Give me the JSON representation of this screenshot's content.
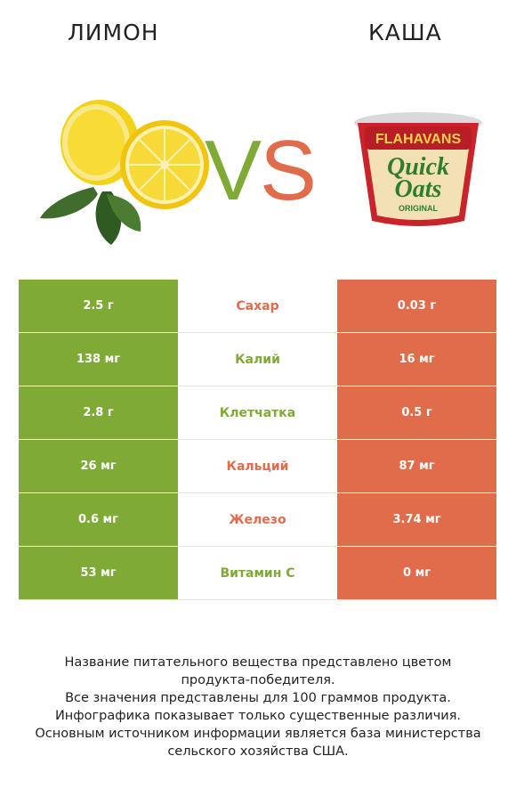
{
  "header": {
    "left_title": "ЛИМОН",
    "right_title": "КАША",
    "vs_v": "V",
    "vs_s": "S"
  },
  "product_right": {
    "brand": "FLAHAVANS",
    "line1": "Quick",
    "line2": "Oats",
    "variant": "ORIGINAL"
  },
  "colors": {
    "winner_left": "#7faa35",
    "winner_right": "#e06c4b"
  },
  "rows": [
    {
      "left": "2.5 г",
      "label": "Сахар",
      "right": "0.03 г",
      "winner": "right"
    },
    {
      "left": "138 мг",
      "label": "Калий",
      "right": "16 мг",
      "winner": "left"
    },
    {
      "left": "2.8 г",
      "label": "Клетчатка",
      "right": "0.5 г",
      "winner": "left"
    },
    {
      "left": "26 мг",
      "label": "Кальций",
      "right": "87 мг",
      "winner": "right"
    },
    {
      "left": "0.6 мг",
      "label": "Железо",
      "right": "3.74 мг",
      "winner": "right"
    },
    {
      "left": "53 мг",
      "label": "Витамин С",
      "right": "0 мг",
      "winner": "left"
    }
  ],
  "notes": [
    "Название питательного вещества представлено цветом",
    "продукта-победителя.",
    "Все значения представлены для 100 граммов продукта.",
    "Инфографика показывает только существенные различия.",
    "Основным источником информации является база министерства",
    "сельского хозяйства США."
  ]
}
